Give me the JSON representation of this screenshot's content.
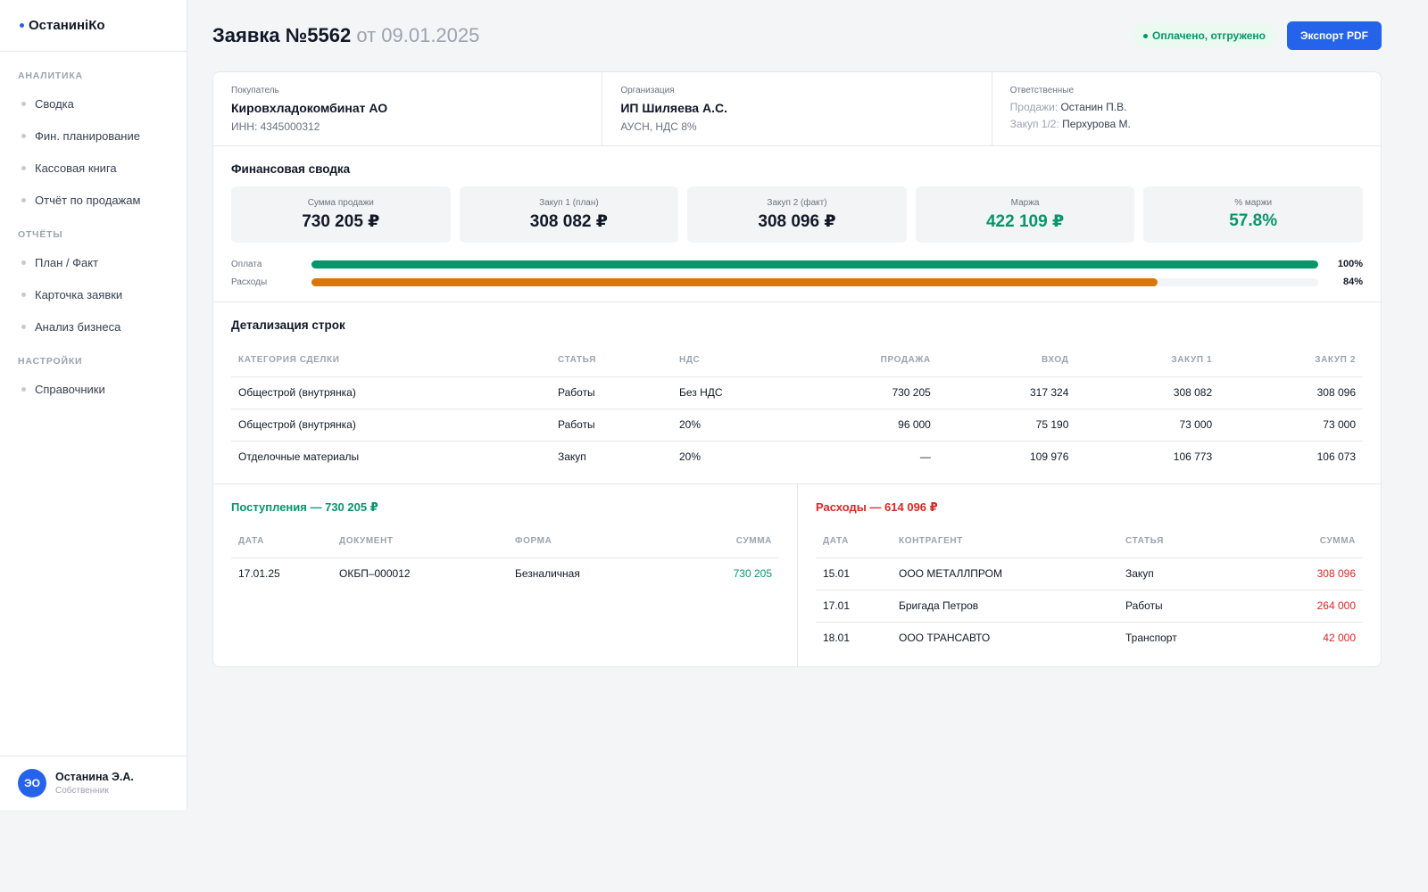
{
  "brand": {
    "name": "ОстанинiКо"
  },
  "sidebar": {
    "sections": [
      {
        "title": "АНАЛИТИКА",
        "items": [
          "Сводка",
          "Фин. планирование",
          "Кассовая книга",
          "Отчёт по продажам"
        ]
      },
      {
        "title": "ОТЧЁТЫ",
        "items": [
          "План / Факт",
          "Карточка заявки",
          "Анализ бизнеса"
        ]
      },
      {
        "title": "НАСТРОЙКИ",
        "items": [
          "Справочники"
        ]
      }
    ]
  },
  "user": {
    "initials": "ЭО",
    "name": "Останина Э.А.",
    "role": "Собственник"
  },
  "header": {
    "title": "Заявка №5562",
    "date": "от 09.01.2025",
    "status": "Оплачено, отгружено",
    "export_label": "Экспорт PDF"
  },
  "info": {
    "buyer": {
      "label": "Покупатель",
      "name": "Кировхладокомбинат АО",
      "sub": "ИНН: 4345000312"
    },
    "org": {
      "label": "Организация",
      "name": "ИП Шиляева А.С.",
      "sub": "АУСН, НДС 8%"
    },
    "responsible": {
      "label": "Ответственные",
      "sales_label": "Продажи:",
      "sales_value": "Останин П.В.",
      "purchase_label": "Закуп 1/2:",
      "purchase_value": "Перхурова М."
    }
  },
  "finance": {
    "title": "Финансовая сводка",
    "kpis": [
      {
        "label": "Сумма продажи",
        "value": "730 205 ₽",
        "color": "#111827"
      },
      {
        "label": "Закуп 1 (план)",
        "value": "308 082 ₽",
        "color": "#111827"
      },
      {
        "label": "Закуп 2 (факт)",
        "value": "308 096 ₽",
        "color": "#111827"
      },
      {
        "label": "Маржа",
        "value": "422 109 ₽",
        "color": "#059669"
      },
      {
        "label": "% маржи",
        "value": "57.8%",
        "color": "#059669"
      }
    ],
    "bars": [
      {
        "label": "Оплата",
        "percent": 100,
        "value": "100%",
        "color": "#059669"
      },
      {
        "label": "Расходы",
        "percent": 84,
        "value": "84%",
        "color": "#d97706"
      }
    ]
  },
  "details": {
    "title": "Детализация строк",
    "columns": [
      "КАТЕГОРИЯ СДЕЛКИ",
      "СТАТЬЯ",
      "НДС",
      "ПРОДАЖА",
      "ВХОД",
      "ЗАКУП 1",
      "ЗАКУП 2"
    ],
    "rows": [
      [
        "Общестрой (внутрянка)",
        "Работы",
        "Без НДС",
        "730 205",
        "317 324",
        "308 082",
        "308 096"
      ],
      [
        "Общестрой (внутрянка)",
        "Работы",
        "20%",
        "96 000",
        "75 190",
        "73 000",
        "73 000"
      ],
      [
        "Отделочные материалы",
        "Закуп",
        "20%",
        "—",
        "109 976",
        "106 773",
        "106 073"
      ]
    ]
  },
  "income": {
    "title": "Поступления — 730 205 ₽",
    "columns": [
      "ДАТА",
      "ДОКУМЕНТ",
      "ФОРМА",
      "СУММА"
    ],
    "rows": [
      [
        "17.01.25",
        "ОКБП–000012",
        "Безналичная",
        "730 205"
      ]
    ]
  },
  "expenses": {
    "title": "Расходы — 614 096 ₽",
    "columns": [
      "ДАТА",
      "КОНТРАГЕНТ",
      "СТАТЬЯ",
      "СУММА"
    ],
    "rows": [
      [
        "15.01",
        "ООО МЕТАЛЛПРОМ",
        "Закуп",
        "308 096"
      ],
      [
        "17.01",
        "Бригада Петров",
        "Работы",
        "264 000"
      ],
      [
        "18.01",
        "ООО ТРАНСАВТО",
        "Транспорт",
        "42 000"
      ]
    ]
  }
}
